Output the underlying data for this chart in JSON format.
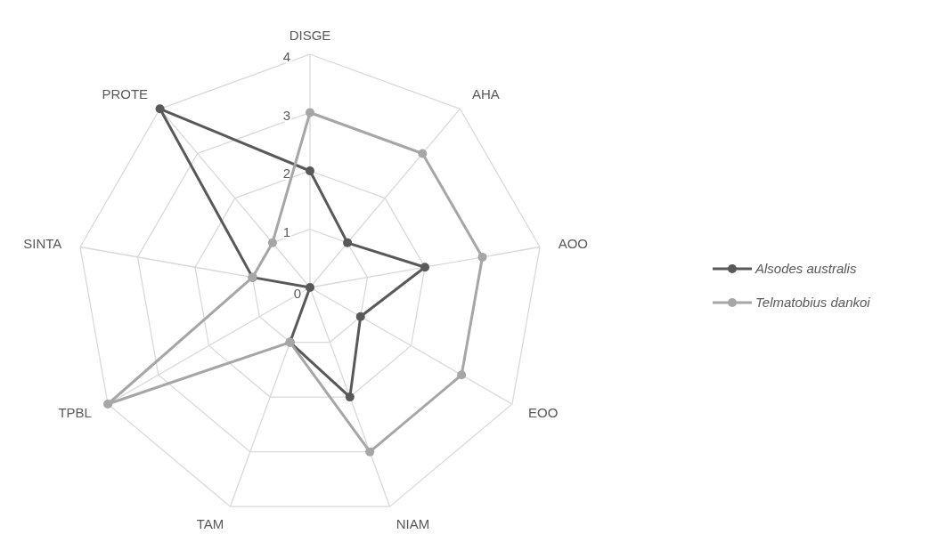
{
  "chart_data": {
    "type": "radar",
    "categories": [
      "DISGE",
      "AHA",
      "AOO",
      "EOO",
      "NIAM",
      "TAM",
      "TPBL",
      "SINTA",
      "PROTE"
    ],
    "ylim": [
      0,
      4
    ],
    "yticks": [
      0,
      1,
      2,
      3,
      4
    ],
    "grid": true,
    "legend": "right",
    "marker": "circle",
    "series": [
      {
        "name": "Alsodes australis",
        "color": "#595959",
        "values": [
          2,
          1,
          2,
          1,
          2,
          1,
          0,
          1,
          4
        ]
      },
      {
        "name": "Telmatobius dankoi",
        "color": "#a6a6a6",
        "values": [
          3,
          3,
          3,
          3,
          3,
          1,
          4,
          1,
          1
        ]
      }
    ]
  }
}
